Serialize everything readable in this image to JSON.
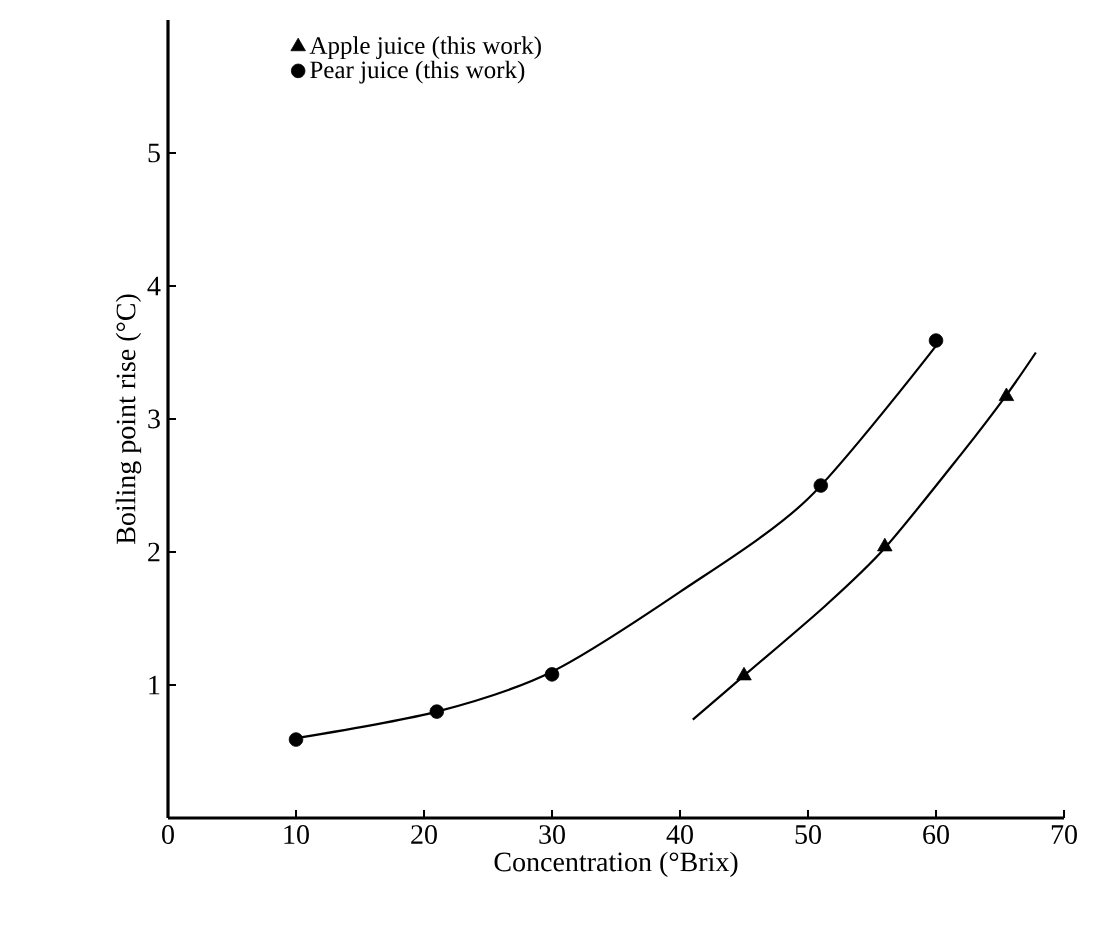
{
  "chart_data": {
    "type": "scatter",
    "xlabel": "Concentration (°Brix)",
    "ylabel": "Boiling point rise (°C)",
    "xlim": [
      0,
      70
    ],
    "ylim": [
      0,
      6
    ],
    "xticks": [
      0,
      10,
      20,
      30,
      40,
      50,
      60,
      70
    ],
    "yticks": [
      1,
      2,
      3,
      4,
      5
    ],
    "legend": "top left",
    "grid": false,
    "series": [
      {
        "name": "Apple juice (this work)",
        "color": "#000000",
        "marker": "triangle",
        "x": [
          45,
          56,
          65.5
        ],
        "values": [
          1.07,
          2.04,
          3.17
        ]
      },
      {
        "name": "Pear juice (this work)",
        "color": "#000000",
        "marker": "circle",
        "x": [
          10,
          21,
          30,
          51,
          60
        ],
        "values": [
          0.59,
          0.8,
          1.08,
          2.5,
          3.59
        ]
      },
      {
        "type": "line",
        "color": "#000000",
        "marker": "none",
        "x": [
          10,
          21,
          30,
          40,
          50,
          60
        ],
        "values": [
          0.6,
          0.8,
          1.1,
          1.7,
          2.4,
          3.55
        ]
      },
      {
        "type": "line",
        "color": "#000000",
        "marker": "none",
        "x": [
          41,
          45,
          51.4,
          56,
          62,
          65.5,
          67.8
        ],
        "values": [
          0.74,
          1.07,
          1.6,
          2.03,
          2.74,
          3.18,
          3.5
        ]
      }
    ]
  }
}
